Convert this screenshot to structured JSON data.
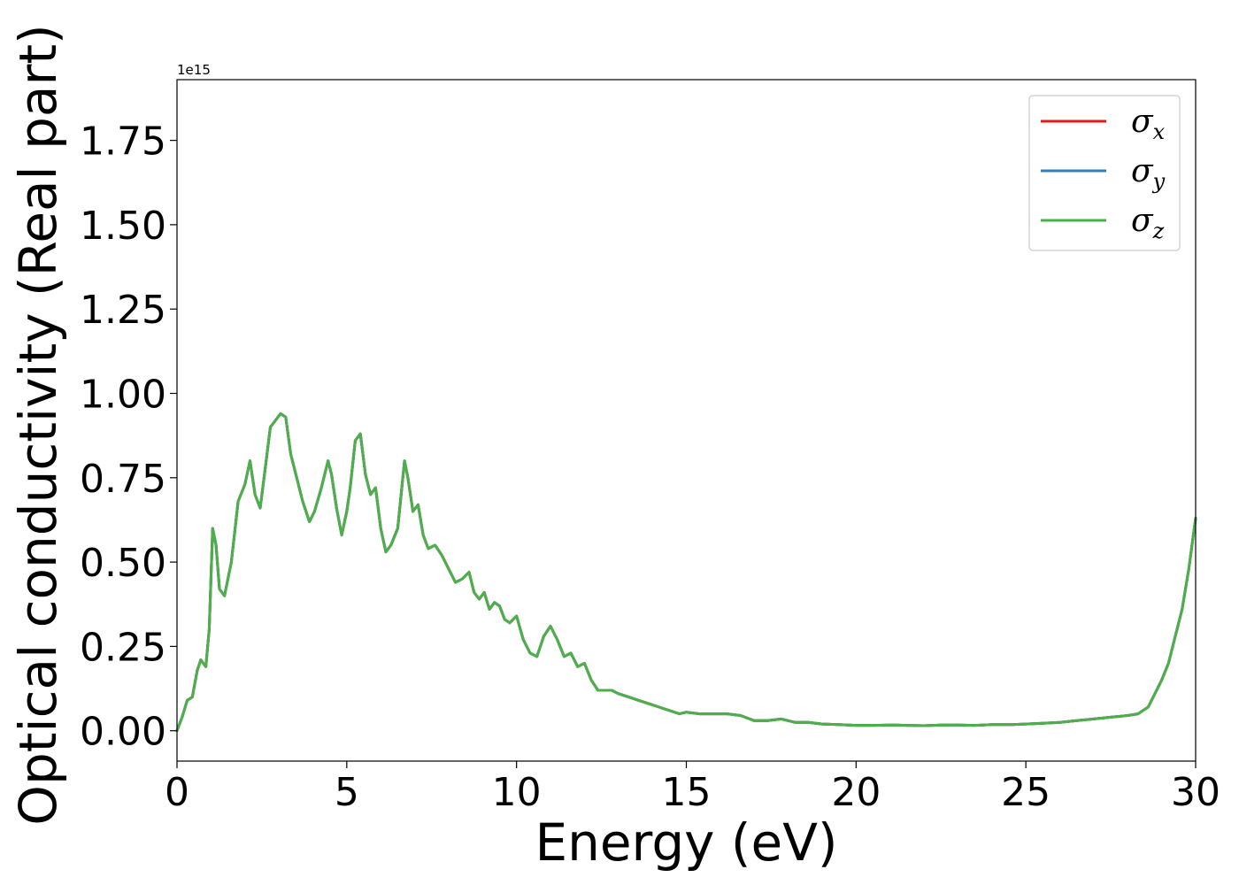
{
  "chart_data": {
    "type": "line",
    "xlabel": "Energy (eV)",
    "ylabel": "Optical conductivity (Real part)",
    "y_offset_text": "1e15",
    "xlim": [
      0,
      30
    ],
    "ylim": [
      -0.09,
      1.93
    ],
    "xticks": [
      0,
      5,
      10,
      15,
      20,
      25,
      30
    ],
    "xtick_labels": [
      "0",
      "5",
      "10",
      "15",
      "20",
      "25",
      "30"
    ],
    "yticks": [
      0.0,
      0.25,
      0.5,
      0.75,
      1.0,
      1.25,
      1.5,
      1.75
    ],
    "ytick_labels": [
      "0.00",
      "0.25",
      "0.50",
      "0.75",
      "1.00",
      "1.25",
      "1.50",
      "1.75"
    ],
    "grid": false,
    "legend_position": "top-right",
    "x": [
      0,
      0.15,
      0.3,
      0.45,
      0.6,
      0.7,
      0.85,
      0.95,
      1.05,
      1.15,
      1.25,
      1.4,
      1.6,
      1.8,
      2.0,
      2.15,
      2.3,
      2.45,
      2.6,
      2.75,
      2.9,
      3.05,
      3.2,
      3.35,
      3.5,
      3.7,
      3.9,
      4.05,
      4.25,
      4.45,
      4.55,
      4.7,
      4.85,
      5.0,
      5.1,
      5.25,
      5.4,
      5.55,
      5.7,
      5.85,
      6.0,
      6.15,
      6.3,
      6.5,
      6.7,
      6.8,
      6.95,
      7.1,
      7.25,
      7.4,
      7.6,
      7.8,
      8.0,
      8.2,
      8.4,
      8.6,
      8.75,
      8.9,
      9.05,
      9.2,
      9.35,
      9.5,
      9.65,
      9.8,
      10.0,
      10.2,
      10.4,
      10.6,
      10.8,
      11.0,
      11.2,
      11.4,
      11.6,
      11.8,
      12.0,
      12.2,
      12.4,
      12.6,
      12.8,
      13.0,
      13.3,
      13.6,
      13.9,
      14.2,
      14.5,
      14.8,
      15.0,
      15.4,
      15.8,
      16.2,
      16.6,
      17.0,
      17.4,
      17.8,
      18.2,
      18.6,
      19.0,
      19.5,
      20.0,
      20.5,
      21.0,
      21.5,
      22.0,
      22.5,
      23.0,
      23.5,
      24.0,
      24.5,
      25.0,
      25.5,
      26.0,
      26.5,
      27.0,
      27.5,
      28.0,
      28.3,
      28.6,
      28.8,
      29.0,
      29.2,
      29.4,
      29.6,
      29.8,
      30.0
    ],
    "series": [
      {
        "name": "σx",
        "color": "#e41a1c",
        "values": [
          0.0,
          0.04,
          0.09,
          0.1,
          0.18,
          0.21,
          0.19,
          0.3,
          0.6,
          0.55,
          0.42,
          0.4,
          0.5,
          0.68,
          0.73,
          0.8,
          0.7,
          0.66,
          0.78,
          0.9,
          0.92,
          0.94,
          0.93,
          0.82,
          0.76,
          0.68,
          0.62,
          0.65,
          0.72,
          0.8,
          0.76,
          0.66,
          0.58,
          0.65,
          0.72,
          0.86,
          0.88,
          0.76,
          0.7,
          0.72,
          0.6,
          0.53,
          0.55,
          0.6,
          0.8,
          0.75,
          0.65,
          0.67,
          0.58,
          0.54,
          0.55,
          0.52,
          0.48,
          0.44,
          0.45,
          0.47,
          0.41,
          0.39,
          0.41,
          0.36,
          0.38,
          0.37,
          0.33,
          0.32,
          0.34,
          0.27,
          0.23,
          0.22,
          0.28,
          0.31,
          0.27,
          0.22,
          0.23,
          0.19,
          0.2,
          0.15,
          0.12,
          0.12,
          0.12,
          0.11,
          0.1,
          0.09,
          0.08,
          0.07,
          0.06,
          0.05,
          0.055,
          0.05,
          0.05,
          0.05,
          0.045,
          0.03,
          0.03,
          0.035,
          0.025,
          0.025,
          0.02,
          0.018,
          0.016,
          0.016,
          0.017,
          0.016,
          0.015,
          0.017,
          0.017,
          0.016,
          0.018,
          0.018,
          0.02,
          0.022,
          0.025,
          0.03,
          0.035,
          0.04,
          0.045,
          0.05,
          0.07,
          0.11,
          0.15,
          0.2,
          0.28,
          0.36,
          0.48,
          0.63
        ]
      },
      {
        "name": "σy",
        "color": "#377eb8",
        "values": [
          0.0,
          0.04,
          0.09,
          0.1,
          0.18,
          0.21,
          0.19,
          0.3,
          0.6,
          0.55,
          0.42,
          0.4,
          0.5,
          0.68,
          0.73,
          0.8,
          0.7,
          0.66,
          0.78,
          0.9,
          0.92,
          0.94,
          0.93,
          0.82,
          0.76,
          0.68,
          0.62,
          0.65,
          0.72,
          0.8,
          0.76,
          0.66,
          0.58,
          0.65,
          0.72,
          0.86,
          0.88,
          0.76,
          0.7,
          0.72,
          0.6,
          0.53,
          0.55,
          0.6,
          0.8,
          0.75,
          0.65,
          0.67,
          0.58,
          0.54,
          0.55,
          0.52,
          0.48,
          0.44,
          0.45,
          0.47,
          0.41,
          0.39,
          0.41,
          0.36,
          0.38,
          0.37,
          0.33,
          0.32,
          0.34,
          0.27,
          0.23,
          0.22,
          0.28,
          0.31,
          0.27,
          0.22,
          0.23,
          0.19,
          0.2,
          0.15,
          0.12,
          0.12,
          0.12,
          0.11,
          0.1,
          0.09,
          0.08,
          0.07,
          0.06,
          0.05,
          0.055,
          0.05,
          0.05,
          0.05,
          0.045,
          0.03,
          0.03,
          0.035,
          0.025,
          0.025,
          0.02,
          0.018,
          0.016,
          0.016,
          0.017,
          0.016,
          0.015,
          0.017,
          0.017,
          0.016,
          0.018,
          0.018,
          0.02,
          0.022,
          0.025,
          0.03,
          0.035,
          0.04,
          0.045,
          0.05,
          0.07,
          0.11,
          0.15,
          0.2,
          0.28,
          0.36,
          0.48,
          0.63
        ]
      },
      {
        "name": "σz",
        "color": "#4daf4a",
        "values": [
          0.0,
          0.04,
          0.09,
          0.1,
          0.18,
          0.21,
          0.19,
          0.3,
          0.6,
          0.55,
          0.42,
          0.4,
          0.5,
          0.68,
          0.73,
          0.8,
          0.7,
          0.66,
          0.78,
          0.9,
          0.92,
          0.94,
          0.93,
          0.82,
          0.76,
          0.68,
          0.62,
          0.65,
          0.72,
          0.8,
          0.76,
          0.66,
          0.58,
          0.65,
          0.72,
          0.86,
          0.88,
          0.76,
          0.7,
          0.72,
          0.6,
          0.53,
          0.55,
          0.6,
          0.8,
          0.75,
          0.65,
          0.67,
          0.58,
          0.54,
          0.55,
          0.52,
          0.48,
          0.44,
          0.45,
          0.47,
          0.41,
          0.39,
          0.41,
          0.36,
          0.38,
          0.37,
          0.33,
          0.32,
          0.34,
          0.27,
          0.23,
          0.22,
          0.28,
          0.31,
          0.27,
          0.22,
          0.23,
          0.19,
          0.2,
          0.15,
          0.12,
          0.12,
          0.12,
          0.11,
          0.1,
          0.09,
          0.08,
          0.07,
          0.06,
          0.05,
          0.055,
          0.05,
          0.05,
          0.05,
          0.045,
          0.03,
          0.03,
          0.035,
          0.025,
          0.025,
          0.02,
          0.018,
          0.016,
          0.016,
          0.017,
          0.016,
          0.015,
          0.017,
          0.017,
          0.016,
          0.018,
          0.018,
          0.02,
          0.022,
          0.025,
          0.03,
          0.035,
          0.04,
          0.045,
          0.05,
          0.07,
          0.11,
          0.15,
          0.2,
          0.28,
          0.36,
          0.48,
          0.63
        ]
      }
    ],
    "legend": [
      {
        "symbol": "σ",
        "subscript": "x",
        "color": "#e41a1c"
      },
      {
        "symbol": "σ",
        "subscript": "y",
        "color": "#377eb8"
      },
      {
        "symbol": "σ",
        "subscript": "z",
        "color": "#4daf4a"
      }
    ]
  }
}
